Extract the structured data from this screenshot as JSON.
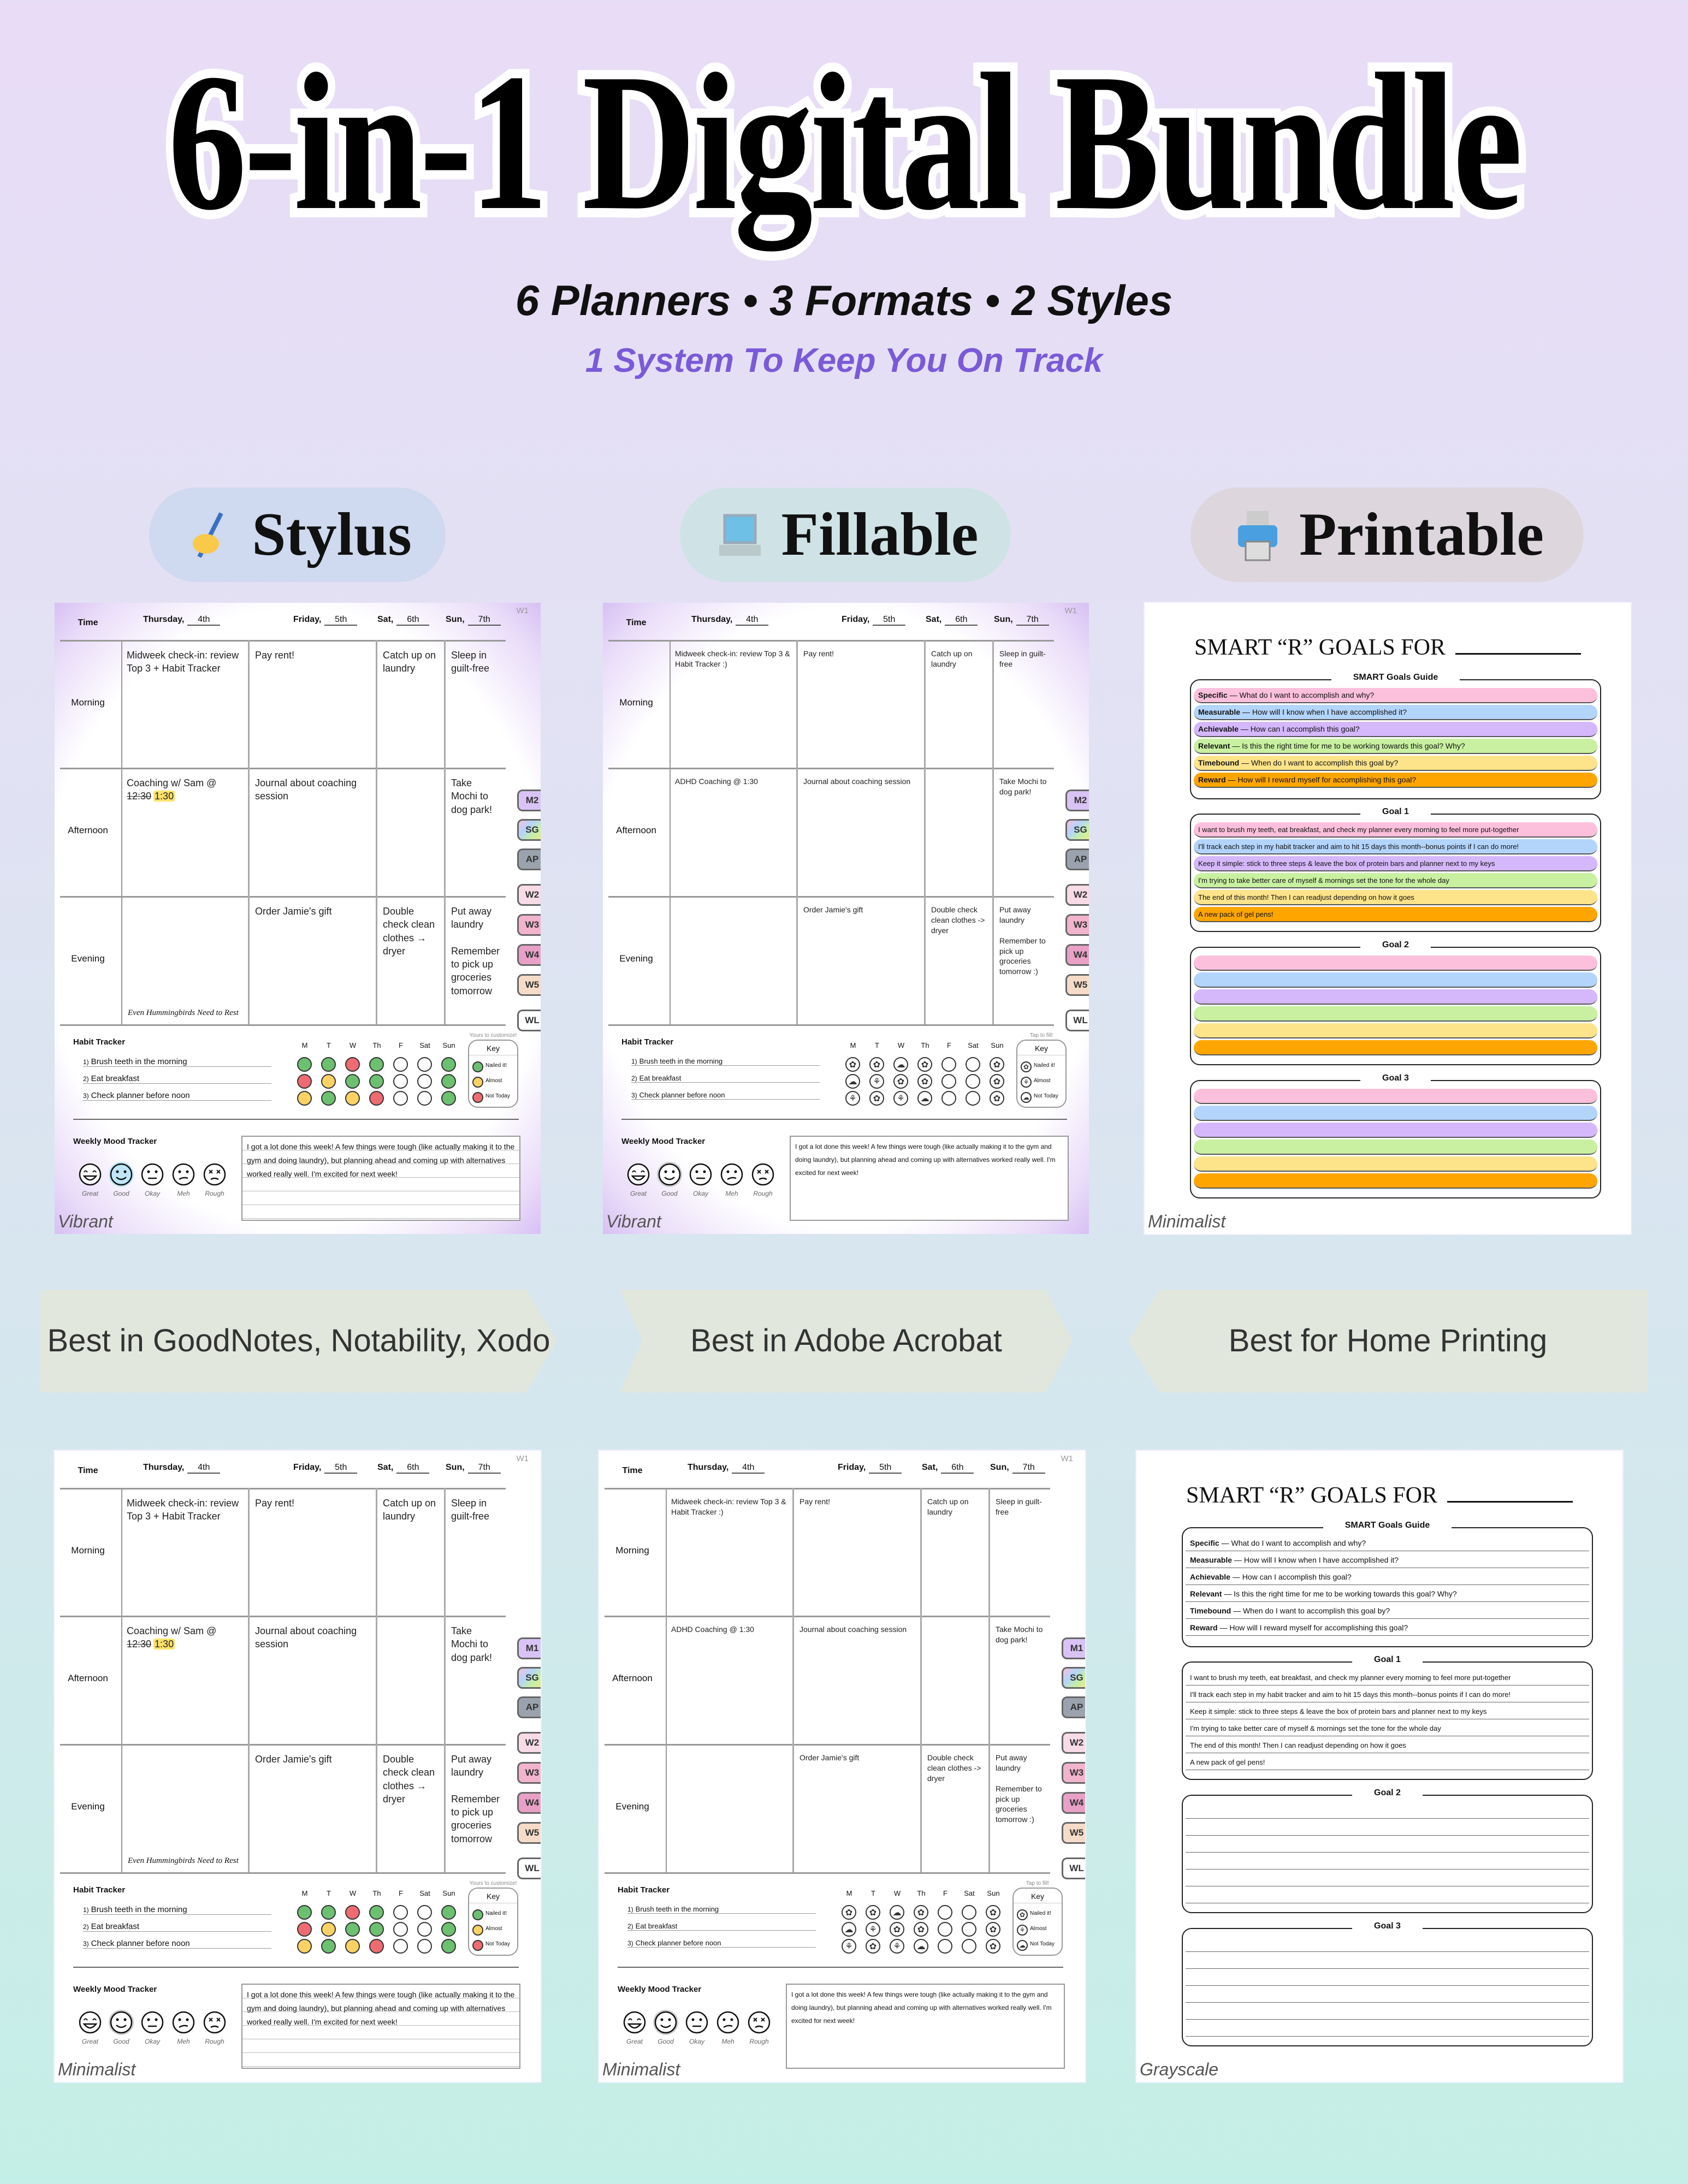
{
  "header": {
    "title": "6-in-1 Digital Bundle",
    "subtitle": "6 Planners • 3 Formats • 2 Styles",
    "tagline": "1 System To Keep You On Track"
  },
  "formats": [
    {
      "label": "Stylus",
      "icon": "writing-hand-icon",
      "bg": "#cfd9ef",
      "note": "Best in GoodNotes, Notability, Xodo"
    },
    {
      "label": "Fillable",
      "icon": "laptop-icon",
      "bg": "#cfe3e6",
      "note": "Best in Adobe Acrobat"
    },
    {
      "label": "Printable",
      "icon": "printer-icon",
      "bg": "#ddd6dd",
      "note": "Best for Home Printing"
    }
  ],
  "colors": {
    "tagline": "#7a5ad8",
    "nailed": "#6cc070",
    "almost": "#fdd265",
    "not_today": "#ee6b72",
    "smart_rows": [
      "#fcc0dc",
      "#b3d4fb",
      "#d5b7fb",
      "#c8f0a0",
      "#fde38a",
      "#ffa500"
    ]
  },
  "planner_common": {
    "week_label": "W1",
    "time_label": "Time",
    "days": [
      {
        "name": "Thursday,",
        "date": "4th"
      },
      {
        "name": "Friday,",
        "date": "5th"
      },
      {
        "name": "Sat,",
        "date": "6th"
      },
      {
        "name": "Sun,",
        "date": "7th"
      }
    ],
    "periods": [
      "Morning",
      "Afternoon",
      "Evening"
    ],
    "habit_title": "Habit Tracker",
    "habit_days": [
      "M",
      "T",
      "W",
      "Th",
      "F",
      "Sat",
      "Sun"
    ],
    "habits": [
      "Brush teeth in the morning",
      "Eat breakfast",
      "Check planner before noon"
    ],
    "key_title": "Key",
    "key_items": [
      "Nailed it!",
      "Almost",
      "Not Today"
    ],
    "mood_title": "Weekly Mood Tracker",
    "moods": [
      "Great",
      "Good",
      "Okay",
      "Meh",
      "Rough"
    ],
    "selected_mood": "Good"
  },
  "stylus_planner": {
    "entries": [
      [
        "Midweek check-in: review Top 3 + Habit Tracker",
        "Pay rent!",
        "Catch up on laundry",
        "Sleep in guilt-free"
      ],
      [
        {
          "text": "Coaching w/ Sam @ ",
          "struck": "12:30",
          "highlight": "1:30"
        },
        "Journal about coaching session",
        "",
        "Take Mochi to dog park!"
      ],
      [
        "",
        "Order Jamie's gift",
        "Double check clean clothes → dryer",
        "Put away laundry\n\nRemember to pick up groceries tomorrow"
      ]
    ],
    "signature": "Even Hummingbirds Need to Rest",
    "key_note": "Yours to customize!",
    "habit_grid": [
      [
        "nailed",
        "nailed",
        "not_today",
        "nailed",
        "",
        "",
        "nailed"
      ],
      [
        "not_today",
        "almost",
        "nailed",
        "nailed",
        "",
        "",
        "nailed"
      ],
      [
        "almost",
        "nailed",
        "almost",
        "not_today",
        "",
        "",
        "nailed"
      ]
    ],
    "reflection": "I got a lot done this week! A few things were tough (like actually making it to the gym and doing laundry), but planning ahead and coming up with alternatives worked really well. I'm excited for next week!"
  },
  "fillable_planner": {
    "entries": [
      [
        "Midweek check-in: review Top 3 & Habit Tracker :)",
        "Pay rent!",
        "Catch up on laundry",
        "Sleep in guilt-free"
      ],
      [
        "ADHD Coaching @ 1:30",
        "Journal about coaching session",
        "",
        "Take Mochi to dog park!"
      ],
      [
        "",
        "Order Jamie's gift",
        "Double check clean clothes -> dryer",
        "Put away laundry\n\nRemember to pick up groceries tomorrow :)"
      ]
    ],
    "key_note": "Tap to fill!",
    "habit_grid": [
      [
        "nailed",
        "nailed",
        "not_today",
        "nailed",
        "",
        "",
        "nailed"
      ],
      [
        "not_today",
        "almost",
        "nailed",
        "nailed",
        "",
        "",
        "nailed"
      ],
      [
        "almost",
        "nailed",
        "almost",
        "not_today",
        "",
        "",
        "nailed"
      ]
    ],
    "reflection": "I got a lot done this week! A few things were tough (like actually making it to the gym and doing laundry), but planning ahead and coming up with alternatives worked really well. I'm excited for next week!"
  },
  "smart": {
    "title": "SMART “R” GOALS FOR",
    "guide_title": "SMART Goals Guide",
    "guide": [
      {
        "term": "Specific",
        "question": "What do I want to accomplish and why?"
      },
      {
        "term": "Measurable",
        "question": "How will I know when I have accomplished it?"
      },
      {
        "term": "Achievable",
        "question": "How can I accomplish this goal?"
      },
      {
        "term": "Relevant",
        "question": "Is this the right time for me to be working towards this goal? Why?"
      },
      {
        "term": "Timebound",
        "question": "When do I want to accomplish this goal by?"
      },
      {
        "term": "Reward",
        "question": "How will I reward myself for accomplishing this goal?"
      }
    ],
    "goals": [
      {
        "label": "Goal 1",
        "answers": [
          "I want to brush my teeth, eat breakfast, and check my planner every morning to feel more put-together",
          "I'll track each step in my habit tracker and aim to hit 15 days this month--bonus points if I can do more!",
          "Keep it simple: stick to three steps & leave the box of protein bars and planner next to my keys",
          "I'm trying to take better care of myself & mornings set the tone for the whole day",
          "The end of this month! Then I can readjust depending on how it goes",
          "A new pack of gel pens!"
        ]
      },
      {
        "label": "Goal 2",
        "answers": [
          "",
          "",
          "",
          "",
          "",
          ""
        ]
      },
      {
        "label": "Goal 3",
        "answers": [
          "",
          "",
          "",
          "",
          "",
          ""
        ]
      }
    ]
  },
  "cards": [
    {
      "kind": "planner",
      "format": "stylus",
      "style": "Vibrant",
      "tabs": [
        "M2",
        "SG",
        "AP",
        "W2",
        "W3",
        "W4",
        "W5",
        "WL"
      ]
    },
    {
      "kind": "planner",
      "format": "fillable",
      "style": "Vibrant",
      "tabs": [
        "M2",
        "SG",
        "AP",
        "W2",
        "W3",
        "W4",
        "W5",
        "WL"
      ]
    },
    {
      "kind": "smart",
      "style": "Minimalist",
      "colored": true
    },
    {
      "kind": "planner",
      "format": "stylus",
      "style": "Minimalist",
      "tabs": [
        "M1",
        "SG",
        "AP",
        "W2",
        "W3",
        "W4",
        "W5",
        "WL"
      ]
    },
    {
      "kind": "planner",
      "format": "fillable",
      "style": "Minimalist",
      "tabs": [
        "M1",
        "SG",
        "AP",
        "W2",
        "W3",
        "W4",
        "W5",
        "WL"
      ]
    },
    {
      "kind": "smart",
      "style": "Grayscale",
      "colored": false
    }
  ]
}
